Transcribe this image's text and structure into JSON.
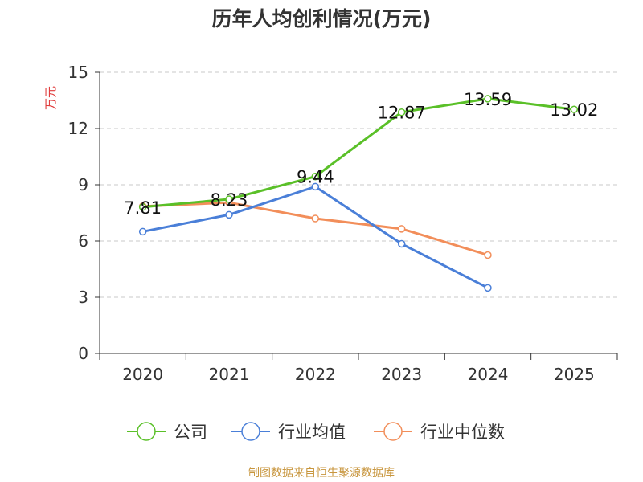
{
  "chart_data": {
    "type": "line",
    "title": "历年人均创利情况(万元)",
    "ylabel": "万元",
    "xlabel": "",
    "ylim": [
      0,
      15
    ],
    "yticks": [
      "0",
      "3",
      "6",
      "9",
      "12",
      "15"
    ],
    "categories": [
      "2020",
      "2021",
      "2022",
      "2023",
      "2024",
      "2025"
    ],
    "grid": true,
    "legend_position": "bottom",
    "series": [
      {
        "name": "公司",
        "color": "#5ac028",
        "values": [
          7.81,
          8.23,
          9.44,
          12.87,
          13.59,
          13.02
        ],
        "labels": [
          "7.81",
          "8.23",
          "9.44",
          "12.87",
          "13.59",
          "13.02"
        ]
      },
      {
        "name": "行业均值",
        "color": "#4a7fd8",
        "values": [
          6.5,
          7.4,
          8.9,
          5.85,
          3.5,
          null
        ]
      },
      {
        "name": "行业中位数",
        "color": "#f28e5a",
        "values": [
          7.85,
          8.05,
          7.2,
          6.65,
          5.25,
          null
        ]
      }
    ]
  },
  "source_note": "制图数据来自恒生聚源数据库"
}
